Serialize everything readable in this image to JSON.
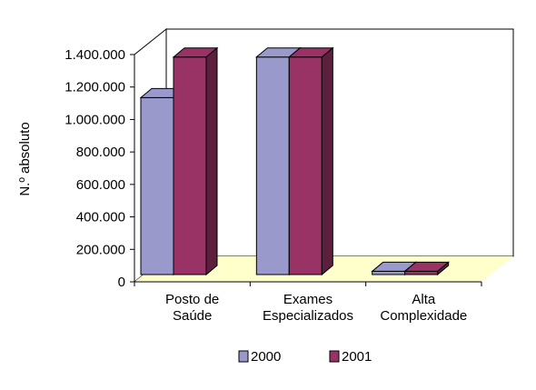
{
  "chart_data": {
    "type": "bar",
    "ylabel": "N.º absoluto",
    "categories": [
      [
        "Posto de",
        "Saúde"
      ],
      [
        "Exames",
        "Especializados"
      ],
      [
        "Alta",
        "Complexidade"
      ]
    ],
    "yticks": [
      "0",
      "200.000",
      "400.000",
      "600.000",
      "800.000",
      "1.000.000",
      "1.200.000",
      "1.400.000"
    ],
    "ylim": [
      0,
      1400000
    ],
    "grid": false,
    "legend_position": "bottom",
    "series": [
      {
        "name": "2000",
        "values": [
          1090000,
          1340000,
          20000
        ],
        "color": "#9999cc",
        "dark_color": "#6a6a96"
      },
      {
        "name": "2001",
        "values": [
          1340000,
          1340000,
          20000
        ],
        "color": "#993366",
        "dark_color": "#5c1f3d"
      }
    ],
    "colors": {
      "floor": "#ffffcc",
      "wall": "#ffffff"
    }
  }
}
